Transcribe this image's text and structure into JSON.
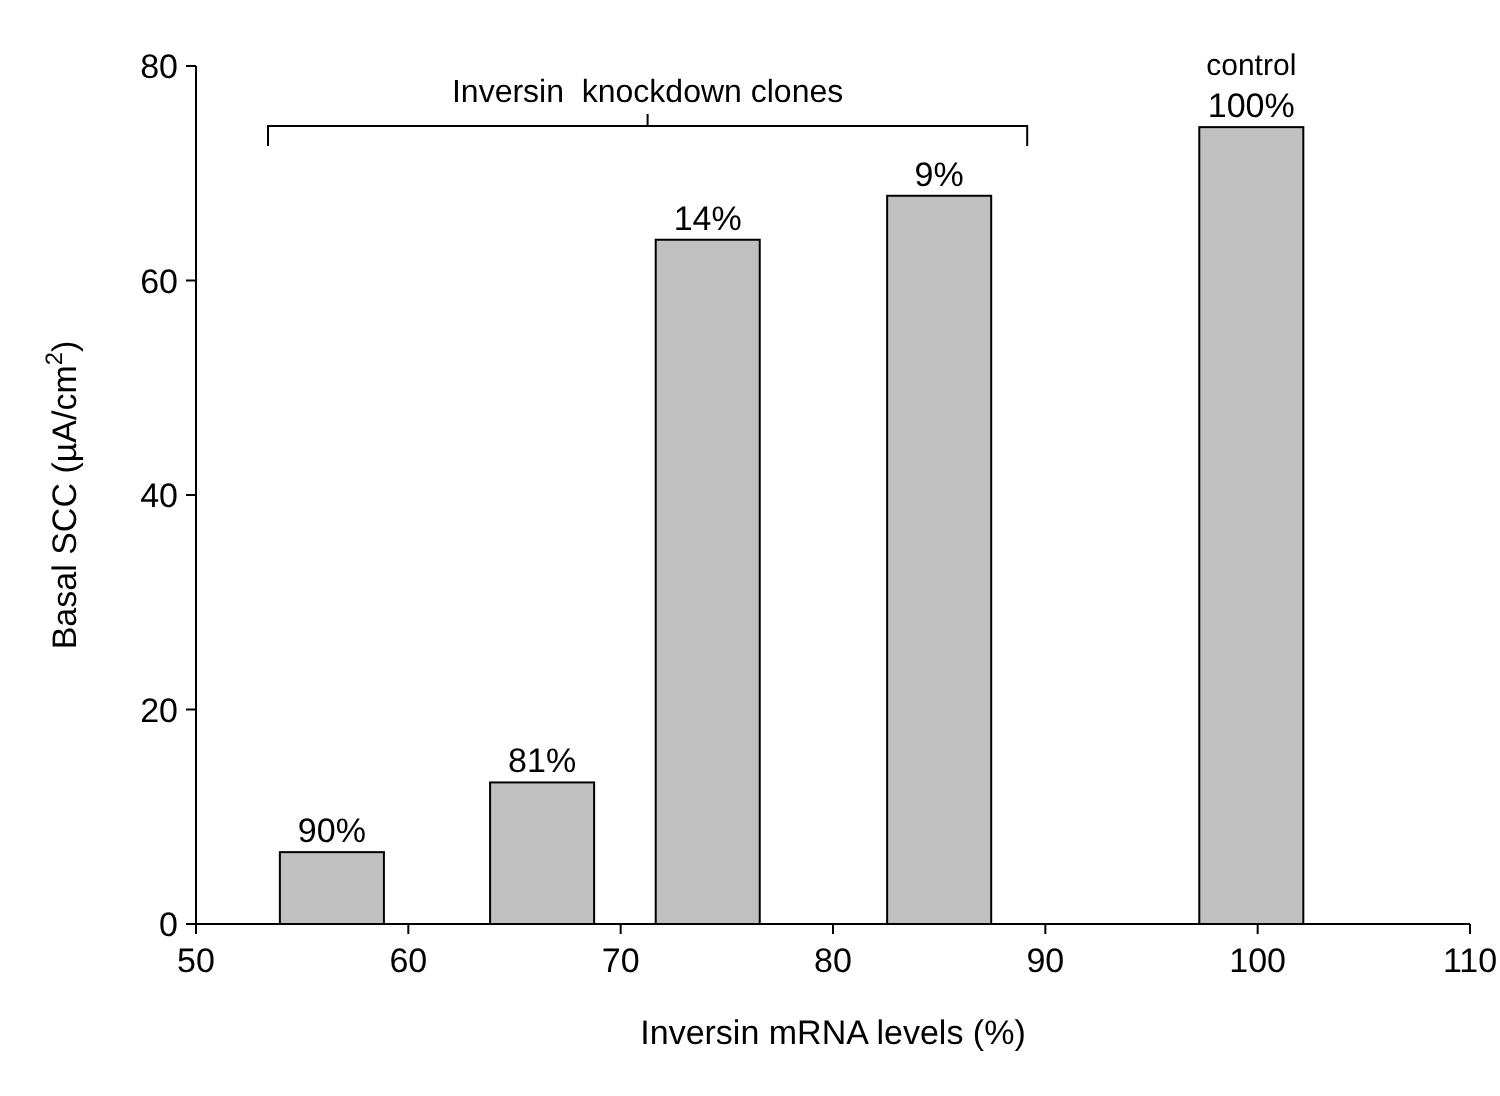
{
  "chart_data": {
    "type": "bar",
    "xlabel": "Inversin mRNA levels (%)",
    "ylabel": "Basal SCC (µA/cm$^{2}$)",
    "x": [
      56.4,
      66.3,
      74.1,
      85,
      99.7
    ],
    "values": [
      6.7,
      13.2,
      63.8,
      67.9,
      74.3
    ],
    "color": "#c0c0c0",
    "xlim": [
      50,
      110
    ],
    "xticks": [
      50,
      60,
      70,
      80,
      90,
      100,
      110
    ],
    "ylim": [
      0,
      80
    ],
    "yticks": [
      0,
      20,
      40,
      60,
      80
    ],
    "grid": false,
    "annotations": [
      "Inversin  knockdown clones",
      "control",
      {
        "text": "90%",
        "x": 56.4,
        "y": 6.7
      },
      {
        "text": "81%",
        "x": 66.3,
        "y": 13.2
      },
      {
        "text": "14%",
        "x": 74.1,
        "y": 63.8
      },
      {
        "text": "9%",
        "x": 85,
        "y": 67.9
      },
      {
        "text": "100%",
        "x": 99.7,
        "y": 74.3
      }
    ]
  }
}
